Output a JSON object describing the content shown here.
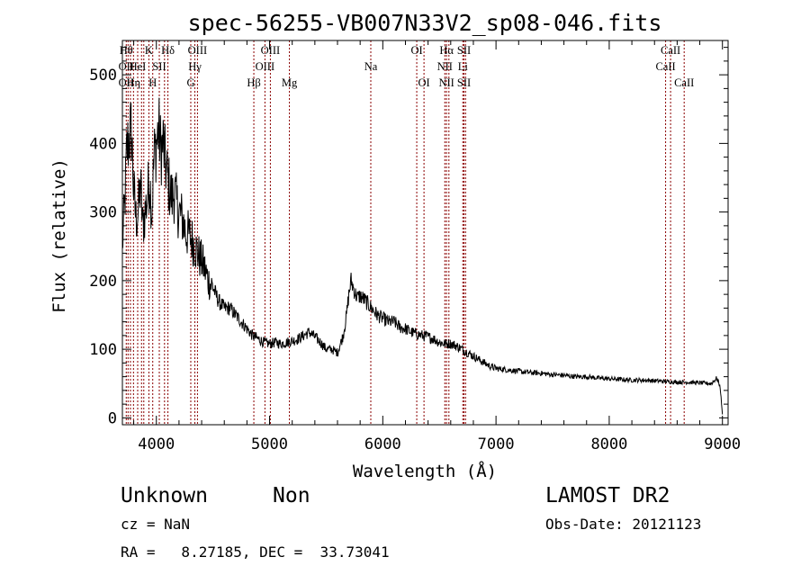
{
  "chart_data": {
    "type": "line",
    "title": "spec-56255-VB007N33V2_sp08-046.fits",
    "xlabel": "Wavelength (Å)",
    "ylabel": "Flux (relative)",
    "xlim": [
      3700,
      9050
    ],
    "ylim": [
      -10,
      550
    ],
    "xticks": [
      4000,
      5000,
      6000,
      7000,
      8000,
      9000
    ],
    "yticks": [
      0,
      100,
      200,
      300,
      400,
      500
    ],
    "grid": false,
    "line_color": "#000000",
    "marker_color": "#8b0000",
    "series": [
      {
        "x": [
          3700,
          3720,
          3740,
          3760,
          3780,
          3800,
          3820,
          3840,
          3860,
          3880,
          3900,
          3920,
          3940,
          3960,
          3980,
          4000,
          4020,
          4040,
          4060,
          4080,
          4100,
          4120,
          4140,
          4160,
          4180,
          4200,
          4230,
          4260,
          4300,
          4340,
          4380,
          4420,
          4460,
          4500,
          4550,
          4600,
          4650,
          4700,
          4750,
          4800,
          4850,
          4900,
          4950,
          5000,
          5050,
          5100,
          5150,
          5200,
          5250,
          5300,
          5350,
          5400,
          5450,
          5500,
          5550,
          5600,
          5650,
          5680,
          5700,
          5720,
          5740,
          5760,
          5780,
          5800,
          5850,
          5900,
          5950,
          6000,
          6050,
          6100,
          6150,
          6200,
          6250,
          6300,
          6350,
          6400,
          6450,
          6500,
          6550,
          6600,
          6650,
          6700,
          6750,
          6800,
          6850,
          6900,
          6950,
          7000,
          7100,
          7200,
          7300,
          7400,
          7500,
          7600,
          7700,
          7800,
          7900,
          8000,
          8100,
          8200,
          8300,
          8400,
          8500,
          8600,
          8700,
          8800,
          8900,
          8950,
          8980,
          9000
        ],
        "y": [
          250,
          310,
          390,
          410,
          420,
          330,
          290,
          300,
          340,
          280,
          300,
          320,
          350,
          300,
          380,
          400,
          420,
          390,
          400,
          370,
          350,
          330,
          320,
          330,
          310,
          300,
          290,
          270,
          265,
          250,
          235,
          220,
          200,
          190,
          170,
          160,
          160,
          150,
          140,
          130,
          120,
          115,
          110,
          108,
          110,
          108,
          110,
          112,
          115,
          120,
          125,
          118,
          110,
          100,
          100,
          95,
          120,
          150,
          180,
          200,
          190,
          180,
          175,
          178,
          170,
          160,
          150,
          145,
          140,
          140,
          132,
          130,
          125,
          122,
          120,
          118,
          115,
          110,
          108,
          108,
          105,
          100,
          95,
          90,
          85,
          80,
          75,
          72,
          70,
          68,
          66,
          65,
          63,
          62,
          60,
          60,
          58,
          57,
          56,
          55,
          55,
          54,
          53,
          52,
          52,
          51,
          50,
          58,
          45,
          5
        ]
      }
    ],
    "lines": [
      {
        "x": 3734,
        "labels": [
          {
            "t": "Hθ",
            "row": 0
          },
          {
            "t": "OII",
            "row": 1
          },
          {
            "t": "OII",
            "row": 2
          }
        ]
      },
      {
        "x": 3750,
        "labels": []
      },
      {
        "x": 3771,
        "labels": []
      },
      {
        "x": 3798,
        "labels": [
          {
            "t": "Hη",
            "row": 2
          }
        ]
      },
      {
        "x": 3835,
        "labels": [
          {
            "t": "HeI",
            "row": 1
          }
        ]
      },
      {
        "x": 3869,
        "labels": []
      },
      {
        "x": 3889,
        "labels": []
      },
      {
        "x": 3934,
        "labels": [
          {
            "t": "K",
            "row": 0
          }
        ]
      },
      {
        "x": 3968,
        "labels": [
          {
            "t": "H",
            "row": 2
          }
        ]
      },
      {
        "x": 4026,
        "labels": [
          {
            "t": "SII",
            "row": 1
          }
        ]
      },
      {
        "x": 4072,
        "labels": []
      },
      {
        "x": 4102,
        "labels": [
          {
            "t": "Hδ",
            "row": 0
          }
        ]
      },
      {
        "x": 4304,
        "labels": [
          {
            "t": "G",
            "row": 2
          }
        ]
      },
      {
        "x": 4340,
        "labels": [
          {
            "t": "Hγ",
            "row": 1
          }
        ]
      },
      {
        "x": 4363,
        "labels": [
          {
            "t": "OIII",
            "row": 0
          }
        ]
      },
      {
        "x": 4861,
        "labels": [
          {
            "t": "Hβ",
            "row": 2
          }
        ]
      },
      {
        "x": 4959,
        "labels": [
          {
            "t": "OIII",
            "row": 1
          }
        ]
      },
      {
        "x": 5007,
        "labels": [
          {
            "t": "OIII",
            "row": 0
          }
        ]
      },
      {
        "x": 5175,
        "labels": [
          {
            "t": "Mg",
            "row": 2
          }
        ]
      },
      {
        "x": 5894,
        "labels": [
          {
            "t": "Na",
            "row": 1
          }
        ]
      },
      {
        "x": 6300,
        "labels": [
          {
            "t": "OI",
            "row": 0
          }
        ]
      },
      {
        "x": 6364,
        "labels": [
          {
            "t": "OI",
            "row": 2
          }
        ]
      },
      {
        "x": 6548,
        "labels": [
          {
            "t": "NII",
            "row": 1
          }
        ]
      },
      {
        "x": 6563,
        "labels": [
          {
            "t": "Hα",
            "row": 0
          },
          {
            "t": "NII",
            "row": 2
          }
        ]
      },
      {
        "x": 6584,
        "labels": []
      },
      {
        "x": 6707,
        "labels": [
          {
            "t": "Li",
            "row": 1
          }
        ]
      },
      {
        "x": 6717,
        "labels": [
          {
            "t": "SII",
            "row": 0
          },
          {
            "t": "SII",
            "row": 2
          }
        ]
      },
      {
        "x": 6731,
        "labels": []
      },
      {
        "x": 8498,
        "labels": [
          {
            "t": "CaII",
            "row": 1
          }
        ]
      },
      {
        "x": 8542,
        "labels": [
          {
            "t": "CaII",
            "row": 0
          }
        ]
      },
      {
        "x": 8662,
        "labels": [
          {
            "t": "CaII",
            "row": 2
          }
        ]
      }
    ]
  },
  "info": {
    "class": "Unknown",
    "subclass": "Non",
    "survey": "LAMOST DR2",
    "cz": "cz = NaN",
    "obs_date": "Obs-Date: 20121123",
    "radec": "RA =   8.27185, DEC =  33.73041"
  }
}
